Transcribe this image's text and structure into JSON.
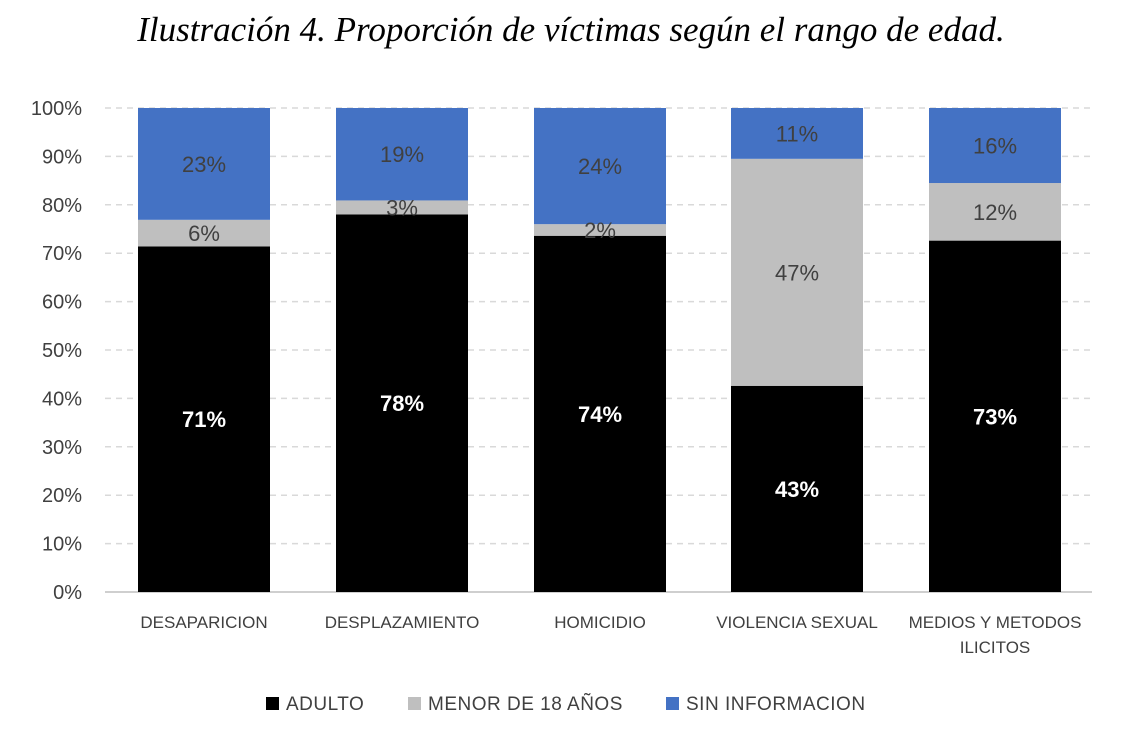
{
  "chart_data": {
    "type": "bar",
    "stacked": true,
    "percent_axis": true,
    "title": "Ilustración 4. Proporción de víctimas según el rango de edad.",
    "xlabel": "",
    "ylabel": "",
    "ylim": [
      0,
      100
    ],
    "yticks": [
      "0%",
      "10%",
      "20%",
      "30%",
      "40%",
      "50%",
      "60%",
      "70%",
      "80%",
      "90%",
      "100%"
    ],
    "grid": true,
    "legend_position": "bottom",
    "categories": [
      [
        "DESAPARICION"
      ],
      [
        "DESPLAZAMIENTO"
      ],
      [
        "HOMICIDIO"
      ],
      [
        "VIOLENCIA SEXUAL"
      ],
      [
        "MEDIOS Y METODOS",
        "ILICITOS"
      ]
    ],
    "series": [
      {
        "name": "ADULTO",
        "color": "#000000",
        "label_color": "#ffffff",
        "label_bold": true,
        "values": [
          71.4,
          78.0,
          73.6,
          42.6,
          72.6
        ],
        "labels": [
          "71%",
          "78%",
          "74%",
          "43%",
          "73%"
        ]
      },
      {
        "name": "MENOR DE 18 AÑOS",
        "color": "#bfbfbf",
        "label_color": "#404040",
        "label_bold": false,
        "values": [
          5.5,
          2.9,
          2.4,
          46.9,
          11.9
        ],
        "labels": [
          "6%",
          "3%",
          "2%",
          "47%",
          "12%"
        ]
      },
      {
        "name": "SIN INFORMACION",
        "color": "#4472c4",
        "label_color": "#404040",
        "label_bold": false,
        "values": [
          23.1,
          19.1,
          24.0,
          10.5,
          15.5
        ],
        "labels": [
          "23%",
          "19%",
          "24%",
          "11%",
          "16%"
        ]
      }
    ]
  }
}
